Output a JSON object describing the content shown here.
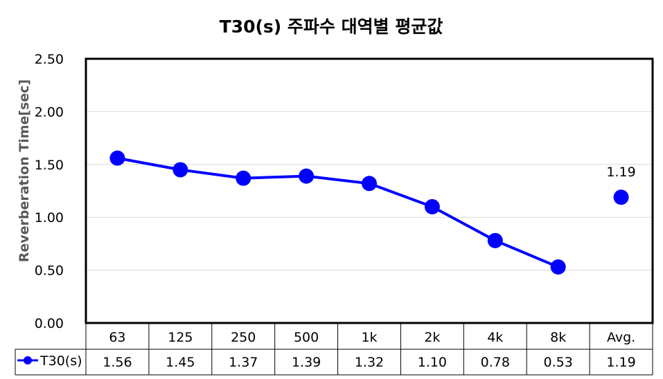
{
  "chart_data": {
    "type": "line",
    "title": "T30(s) 주파수 대역별 평균값",
    "ylabel": "Reverberation Time[sec]",
    "xlabel": "",
    "ylim": [
      0,
      2.5
    ],
    "yticks": [
      "0.00",
      "0.50",
      "1.00",
      "1.50",
      "2.00",
      "2.50"
    ],
    "ytick_values": [
      0,
      0.5,
      1.0,
      1.5,
      2.0,
      2.5
    ],
    "grid": true,
    "categories": [
      "63",
      "125",
      "250",
      "500",
      "1k",
      "2k",
      "4k",
      "8k",
      "Avg."
    ],
    "series": [
      {
        "name": "T30(s)",
        "color": "#0000ff",
        "values": [
          1.56,
          1.45,
          1.37,
          1.39,
          1.32,
          1.1,
          0.78,
          0.53,
          1.19
        ],
        "table_labels": [
          "1.56",
          "1.45",
          "1.37",
          "1.39",
          "1.32",
          "1.10",
          "0.78",
          "0.53",
          "1.19"
        ]
      }
    ],
    "connected_points": 8,
    "annotations": [
      {
        "category": "Avg.",
        "text": "1.19"
      }
    ],
    "legend": "data-table"
  }
}
